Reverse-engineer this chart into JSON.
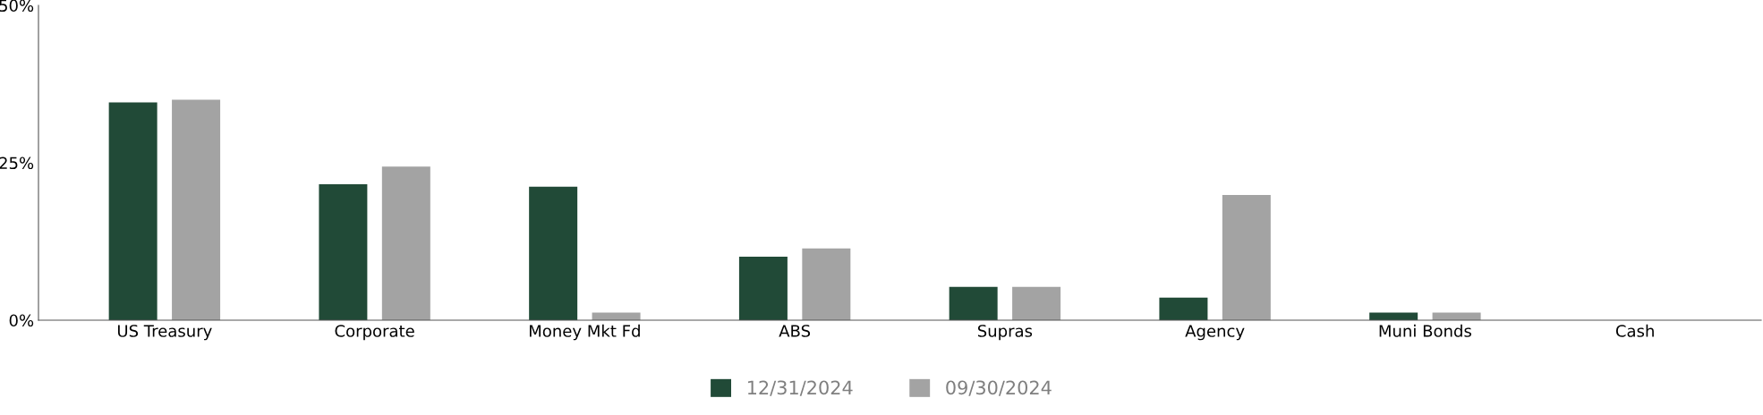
{
  "chart_data": {
    "type": "bar",
    "categories": [
      "US Treasury",
      "Corporate",
      "Money Mkt Fd",
      "ABS",
      "Supras",
      "Agency",
      "Muni Bonds",
      "Cash"
    ],
    "series": [
      {
        "name": "12/31/2024",
        "color": "#214a37",
        "values": [
          34.6,
          21.6,
          21.2,
          10.1,
          5.3,
          3.6,
          1.2,
          0
        ]
      },
      {
        "name": "09/30/2024",
        "color": "#a3a3a3",
        "values": [
          35.0,
          24.4,
          1.2,
          11.4,
          5.3,
          19.9,
          1.2,
          0
        ]
      }
    ],
    "ylim": [
      0,
      50
    ],
    "yticks": [
      {
        "value": 0,
        "label": "0%"
      },
      {
        "value": 25,
        "label": "25%"
      },
      {
        "value": 50,
        "label": "50%"
      }
    ],
    "grid": false,
    "legend": "bottom"
  }
}
